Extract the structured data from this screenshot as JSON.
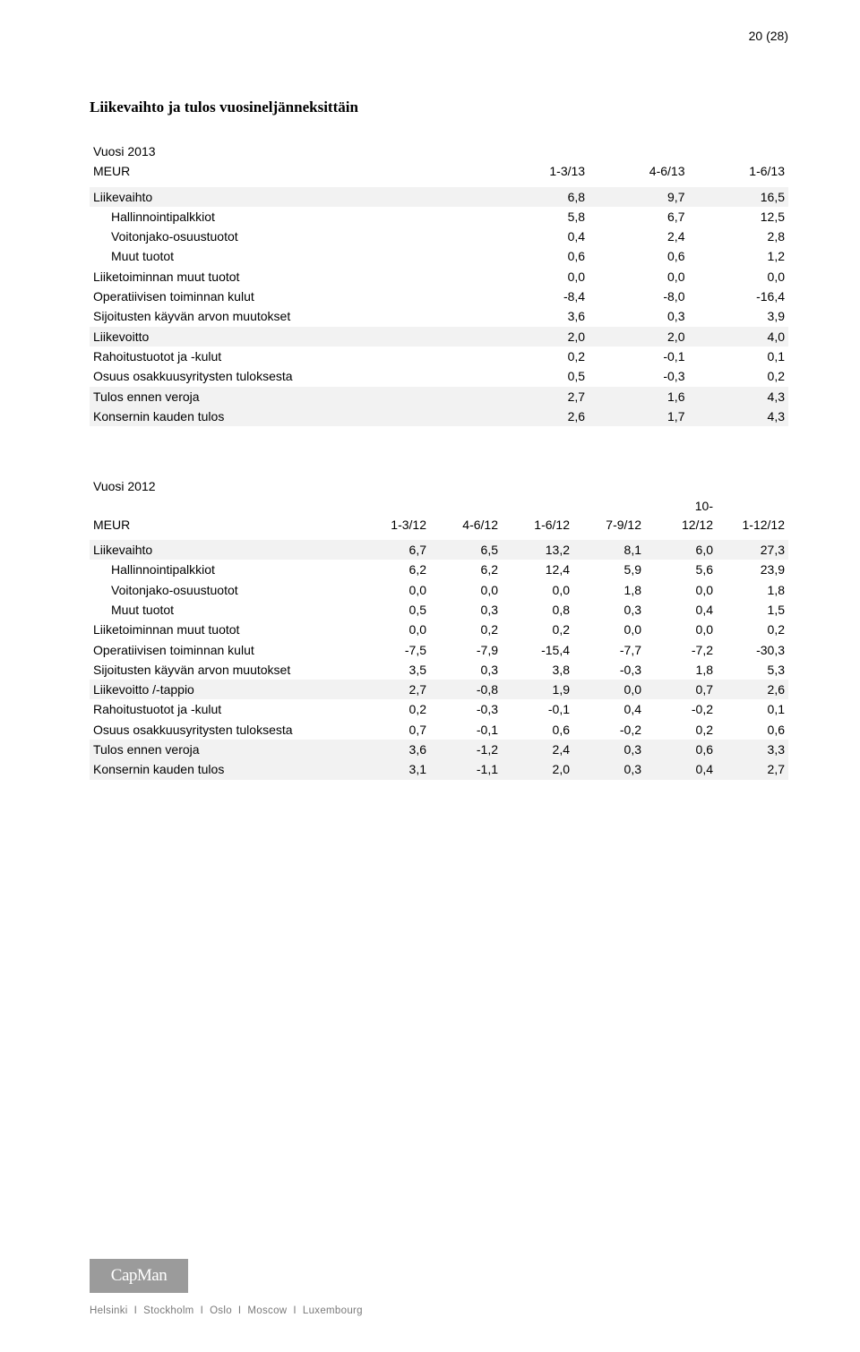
{
  "page_number": "20 (28)",
  "section_title": "Liikevaihto ja tulos vuosineljänneksittäin",
  "table2013": {
    "year": "Vuosi 2013",
    "meur": "MEUR",
    "cols": [
      "1-3/13",
      "4-6/13",
      "1-6/13"
    ],
    "rows": [
      {
        "label": "Liikevaihto",
        "vals": [
          "6,8",
          "9,7",
          "16,5"
        ],
        "band": true
      },
      {
        "label": "Hallinnointipalkkiot",
        "vals": [
          "5,8",
          "6,7",
          "12,5"
        ],
        "indent": true
      },
      {
        "label": "Voitonjako-osuustuotot",
        "vals": [
          "0,4",
          "2,4",
          "2,8"
        ],
        "indent": true
      },
      {
        "label": "Muut tuotot",
        "vals": [
          "0,6",
          "0,6",
          "1,2"
        ],
        "indent": true
      },
      {
        "label": "Liiketoiminnan muut tuotot",
        "vals": [
          "0,0",
          "0,0",
          "0,0"
        ]
      },
      {
        "label": "Operatiivisen toiminnan kulut",
        "vals": [
          "-8,4",
          "-8,0",
          "-16,4"
        ]
      },
      {
        "label": "Sijoitusten käyvän arvon muutokset",
        "vals": [
          "3,6",
          "0,3",
          "3,9"
        ]
      },
      {
        "label": "Liikevoitto",
        "vals": [
          "2,0",
          "2,0",
          "4,0"
        ],
        "band": true
      },
      {
        "label": "Rahoitustuotot ja -kulut",
        "vals": [
          "0,2",
          "-0,1",
          "0,1"
        ]
      },
      {
        "label": "Osuus osakkuusyritysten tuloksesta",
        "vals": [
          "0,5",
          "-0,3",
          "0,2"
        ]
      },
      {
        "label": "Tulos ennen veroja",
        "vals": [
          "2,7",
          "1,6",
          "4,3"
        ],
        "band": true
      },
      {
        "label": "Konsernin kauden tulos",
        "vals": [
          "2,6",
          "1,7",
          "4,3"
        ],
        "band": true
      }
    ]
  },
  "table2012": {
    "year": "Vuosi 2012",
    "meur": "MEUR",
    "cols": [
      "1-3/12",
      "4-6/12",
      "1-6/12",
      "7-9/12",
      "10-\n12/12",
      "1-12/12"
    ],
    "rows": [
      {
        "label": "Liikevaihto",
        "vals": [
          "6,7",
          "6,5",
          "13,2",
          "8,1",
          "6,0",
          "27,3"
        ],
        "band": true
      },
      {
        "label": "Hallinnointipalkkiot",
        "vals": [
          "6,2",
          "6,2",
          "12,4",
          "5,9",
          "5,6",
          "23,9"
        ],
        "indent": true
      },
      {
        "label": "Voitonjako-osuustuotot",
        "vals": [
          "0,0",
          "0,0",
          "0,0",
          "1,8",
          "0,0",
          "1,8"
        ],
        "indent": true
      },
      {
        "label": "Muut tuotot",
        "vals": [
          "0,5",
          "0,3",
          "0,8",
          "0,3",
          "0,4",
          "1,5"
        ],
        "indent": true
      },
      {
        "label": "Liiketoiminnan muut tuotot",
        "vals": [
          "0,0",
          "0,2",
          "0,2",
          "0,0",
          "0,0",
          "0,2"
        ]
      },
      {
        "label": "Operatiivisen toiminnan kulut",
        "vals": [
          "-7,5",
          "-7,9",
          "-15,4",
          "-7,7",
          "-7,2",
          "-30,3"
        ]
      },
      {
        "label": "Sijoitusten käyvän arvon muutokset",
        "vals": [
          "3,5",
          "0,3",
          "3,8",
          "-0,3",
          "1,8",
          "5,3"
        ]
      },
      {
        "label": "Liikevoitto /-tappio",
        "vals": [
          "2,7",
          "-0,8",
          "1,9",
          "0,0",
          "0,7",
          "2,6"
        ],
        "band": true
      },
      {
        "label": "Rahoitustuotot ja -kulut",
        "vals": [
          "0,2",
          "-0,3",
          "-0,1",
          "0,4",
          "-0,2",
          "0,1"
        ]
      },
      {
        "label": "Osuus osakkuusyritysten tuloksesta",
        "vals": [
          "0,7",
          "-0,1",
          "0,6",
          "-0,2",
          "0,2",
          "0,6"
        ]
      },
      {
        "label": "Tulos ennen veroja",
        "vals": [
          "3,6",
          "-1,2",
          "2,4",
          "0,3",
          "0,6",
          "3,3"
        ],
        "band": true
      },
      {
        "label": "Konsernin kauden tulos",
        "vals": [
          "3,1",
          "-1,1",
          "2,0",
          "0,3",
          "0,4",
          "2,7"
        ],
        "band": true
      }
    ]
  },
  "footer": {
    "logo": "CapMan",
    "cities": [
      "Helsinki",
      "Stockholm",
      "Oslo",
      "Moscow",
      "Luxembourg"
    ]
  }
}
